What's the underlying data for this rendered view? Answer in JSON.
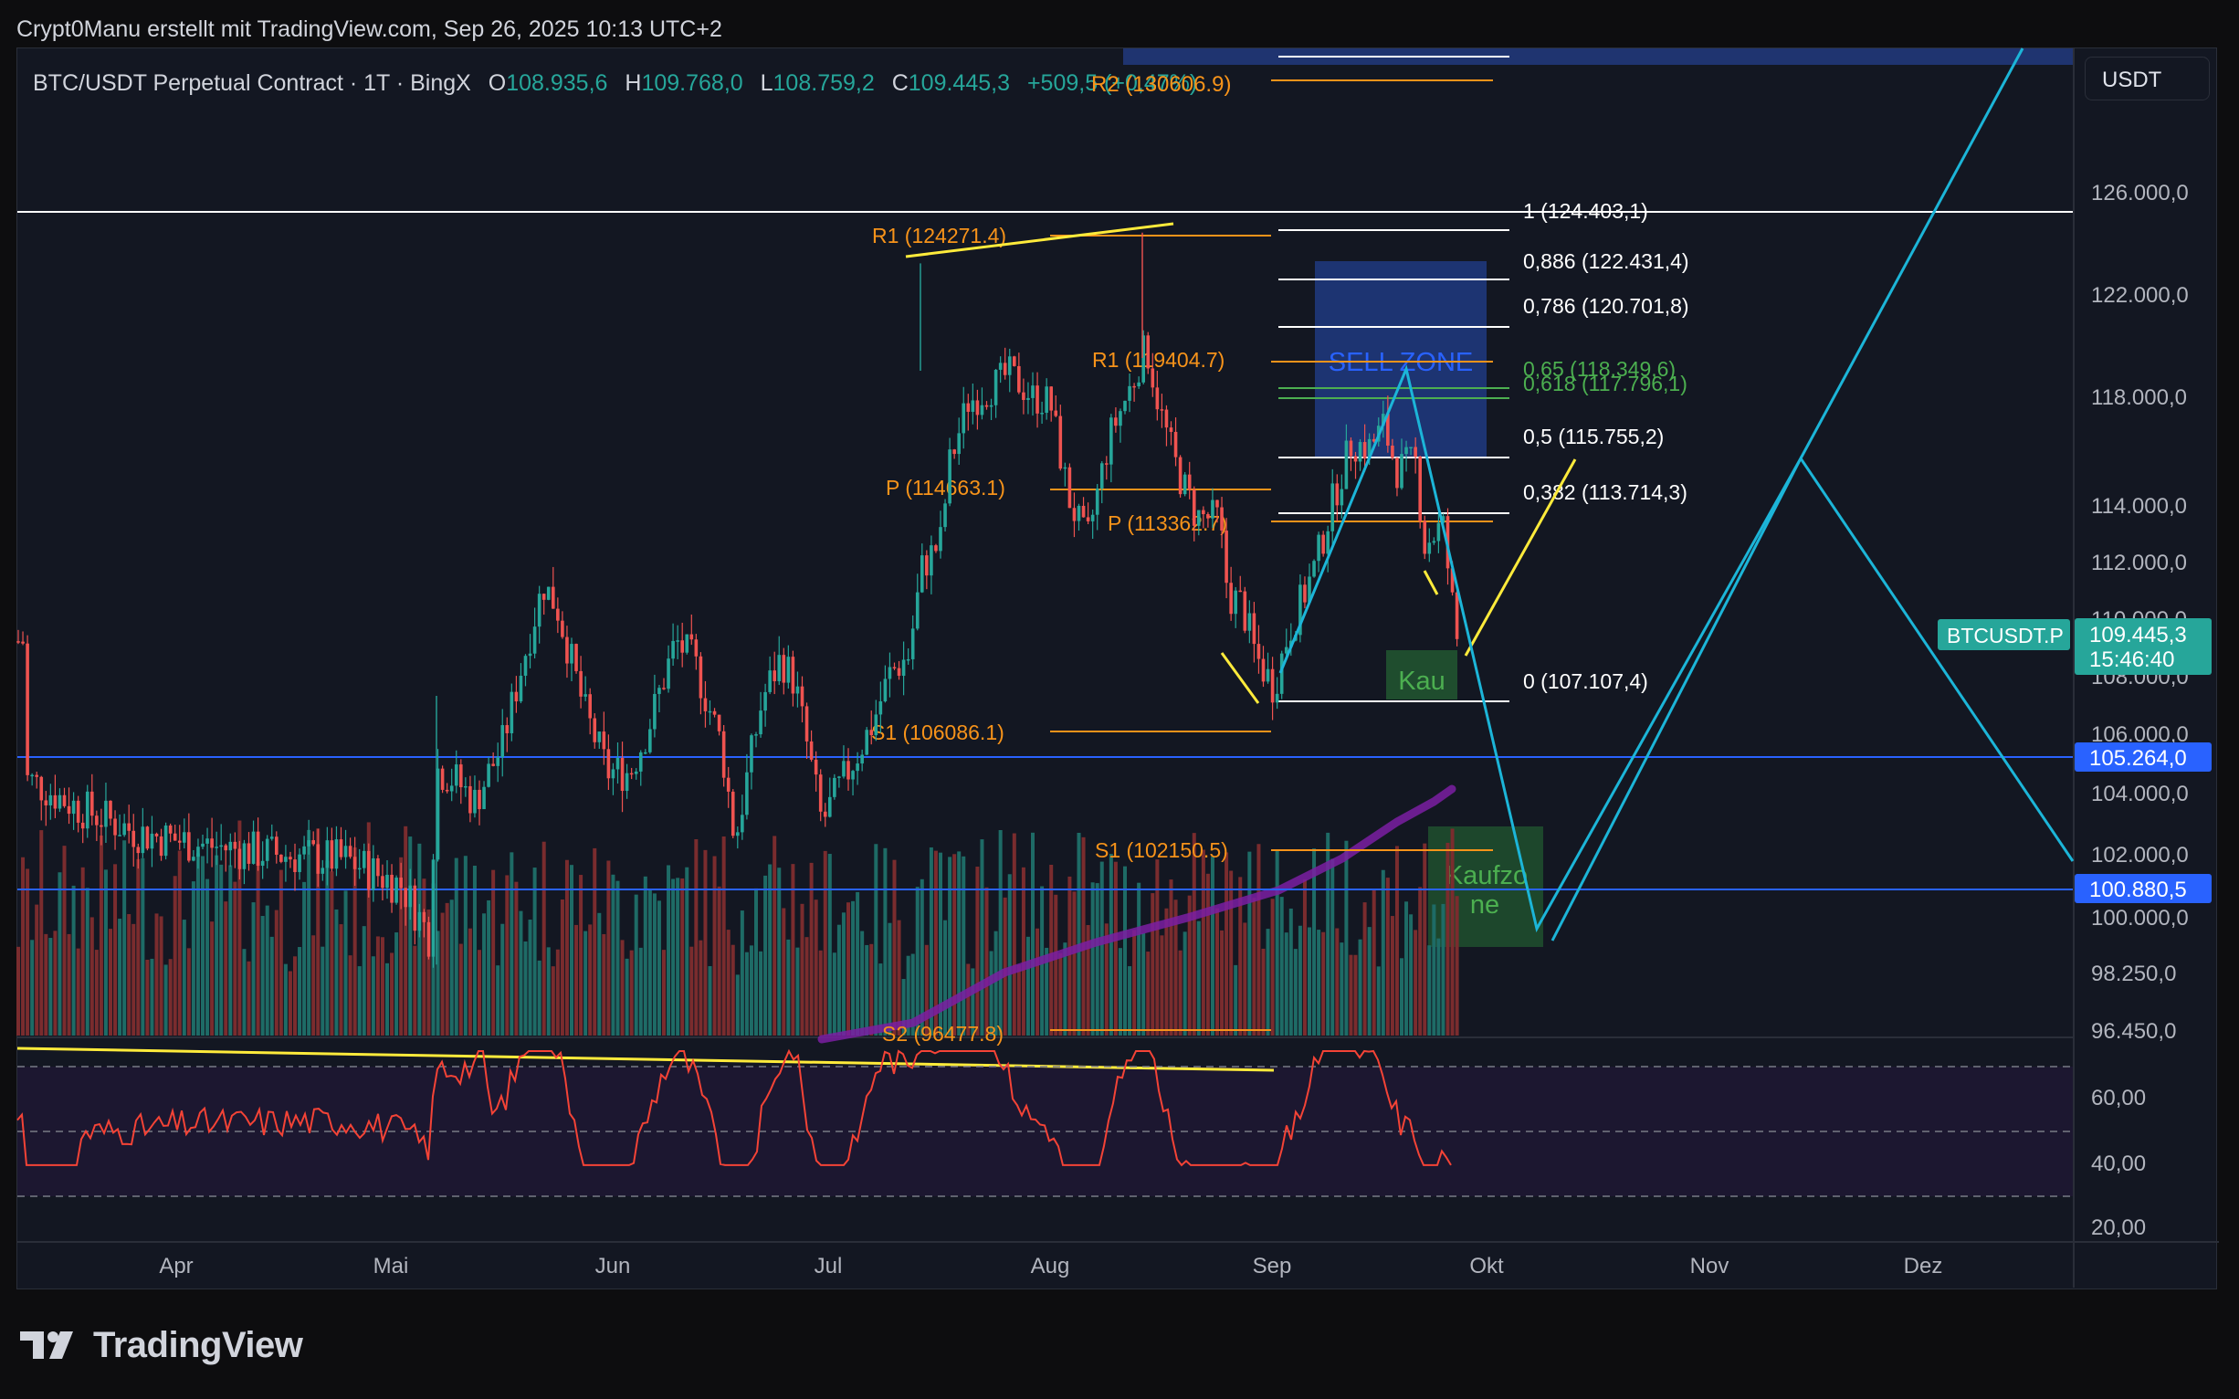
{
  "header": {
    "attribution": "Crypt0Manu erstellt mit TradingView.com, Sep 26, 2025 10:13 UTC+2"
  },
  "brand": {
    "name": "TradingView"
  },
  "colors": {
    "bull": "#26a69a",
    "bear": "#ef5350",
    "bg": "#131722",
    "grid": "#2a2e39",
    "orange": "#f7931a",
    "blue_line": "#2962ff",
    "cyan": "#1cb5d8",
    "yellow": "#ffeb3b",
    "green_fib": "#4caf50",
    "ema": "#7b1fa2",
    "rsi": "#f44336"
  },
  "legend": {
    "symbol": "BTC/USDT Perpetual Contract · 1T · BingX",
    "o_label": "O",
    "o_value": "108.935,6",
    "h_label": "H",
    "h_value": "109.768,0",
    "l_label": "L",
    "l_value": "108.759,2",
    "c_label": "C",
    "c_value": "109.445,3",
    "change": "+509,5 (+0,47%)",
    "overlap_label": "R2 (130606.9)"
  },
  "currency": "USDT",
  "chart_data": {
    "type": "candlestick",
    "symbol": "BTCUSDT.P",
    "timeframe": "1T",
    "x_labels": [
      "Apr",
      "Mai",
      "Jun",
      "Jul",
      "Aug",
      "Sep",
      "Okt",
      "Nov",
      "Dez"
    ],
    "y_ticks": [
      "126.000,0",
      "122.000,0",
      "118.000,0",
      "114.000,0",
      "112.000,0",
      "110.000,0",
      "108.000,0",
      "106.000,0",
      "104.000,0",
      "102.000,0",
      "100.000,0",
      "98.250,0",
      "96.450,0"
    ],
    "ylim": [
      96450,
      128000
    ],
    "last_price": {
      "label": "BTCUSDT.P",
      "price": "109.445,3",
      "countdown": "15:46:40"
    },
    "hlines": [
      "105.264,0",
      "100.880,5"
    ],
    "pivots": [
      {
        "label": "R2 (130606.9)",
        "value": 130606.9
      },
      {
        "label": "R1 (124271.4)",
        "value": 124271.4
      },
      {
        "label": "R1 (119404.7)",
        "value": 119404.7
      },
      {
        "label": "P (114663.1)",
        "value": 114663.1
      },
      {
        "label": "P (113362.7)",
        "value": 113362.7
      },
      {
        "label": "S1 (106086.1)",
        "value": 106086.1
      },
      {
        "label": "S1 (102150.5)",
        "value": 102150.5
      },
      {
        "label": "S2 (96477.8)",
        "value": 96477.8
      }
    ],
    "fibonacci": [
      {
        "label": "1 (124.403,1)",
        "value": 124403.1
      },
      {
        "label": "0,886 (122.431,4)",
        "value": 122431.4
      },
      {
        "label": "0,786 (120.701,8)",
        "value": 120701.8
      },
      {
        "label": "0,65 (118.349,6)",
        "value": 118349.6
      },
      {
        "label": "0,618 (117.796,1)",
        "value": 117796.1
      },
      {
        "label": "0,5 (115.755,2)",
        "value": 115755.2
      },
      {
        "label": "0,382 (113.714,3)",
        "value": 113714.3
      },
      {
        "label": "0 (107.107,4)",
        "value": 107107.4
      }
    ],
    "zones": [
      {
        "label": "SELL ZONE",
        "from": 115755,
        "to": 122431
      },
      {
        "label": "Kau",
        "from": 106850,
        "to": 108700
      },
      {
        "label": "Kaufzone",
        "lines": [
          "Kaufzo",
          "ne"
        ],
        "from": 99600,
        "to": 104100
      }
    ],
    "rsi": {
      "ticks": [
        "60,00",
        "40,00",
        "20,00"
      ],
      "upper": 70,
      "mid": 50,
      "lower": 30
    }
  }
}
